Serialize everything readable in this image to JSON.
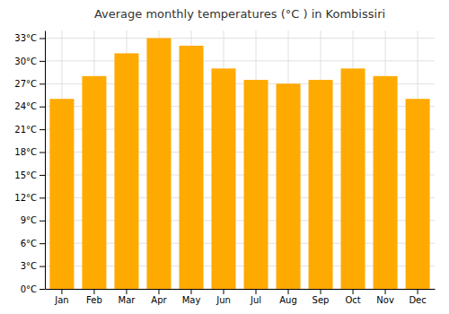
{
  "chart_data": {
    "type": "bar",
    "title": "Average monthly temperatures (°C ) in Kombissiri",
    "categories": [
      "Jan",
      "Feb",
      "Mar",
      "Apr",
      "May",
      "Jun",
      "Jul",
      "Aug",
      "Sep",
      "Oct",
      "Nov",
      "Dec"
    ],
    "values": [
      25,
      28,
      31,
      33,
      32,
      29,
      27.5,
      27,
      27.5,
      29,
      28,
      25
    ],
    "color": "#FFAA00",
    "ylim": [
      0,
      34
    ],
    "yticks": [
      {
        "value": 0,
        "label": "0°C"
      },
      {
        "value": 3,
        "label": "3°C"
      },
      {
        "value": 6,
        "label": "6°C"
      },
      {
        "value": 9,
        "label": "9°C"
      },
      {
        "value": 12,
        "label": "12°C"
      },
      {
        "value": 15,
        "label": "15°C"
      },
      {
        "value": 18,
        "label": "18°C"
      },
      {
        "value": 21,
        "label": "21°C"
      },
      {
        "value": 24,
        "label": "24°C"
      },
      {
        "value": 27,
        "label": "27°C"
      },
      {
        "value": 30,
        "label": "30°C"
      },
      {
        "value": 33,
        "label": "33°C"
      }
    ],
    "grid": true
  }
}
